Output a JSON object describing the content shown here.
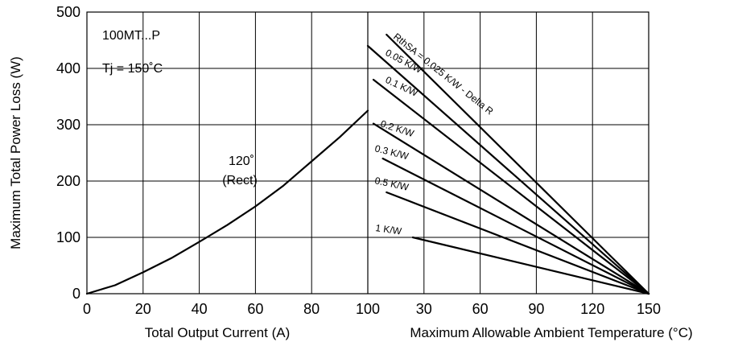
{
  "chart_data": {
    "type": "line",
    "ylabel": "Maximum Total Power Loss (W)",
    "ylim": [
      0,
      500
    ],
    "y_ticks": [
      0,
      100,
      200,
      300,
      400,
      500
    ],
    "grid": true,
    "annotations": {
      "part": "100MT...P",
      "tj": "Tj = 150˚C"
    },
    "left_panel": {
      "xlabel": "Total Output Current (A)",
      "xlim": [
        0,
        100
      ],
      "x_ticks": [
        0,
        20,
        40,
        60,
        80,
        100
      ],
      "series": [
        {
          "name": "120˚ (Rect)",
          "label_lines": [
            "120˚",
            "(Rect)"
          ],
          "x": [
            0,
            10,
            20,
            30,
            40,
            50,
            60,
            70,
            80,
            90,
            100
          ],
          "y": [
            0,
            15,
            38,
            63,
            92,
            122,
            155,
            192,
            235,
            278,
            325
          ]
        }
      ]
    },
    "right_panel": {
      "xlabel": "Maximum Allowable Ambient Temperature (°C)",
      "xlim": [
        0,
        150
      ],
      "x_ticks": [
        30,
        60,
        90,
        120,
        150
      ],
      "x_tick_labels": [
        "30",
        "60",
        "90",
        "120",
        "150"
      ],
      "series": [
        {
          "name": "RthSA = 0.025 K/W - Delta R",
          "x": [
            10,
            150
          ],
          "y": [
            460,
            0
          ]
        },
        {
          "name": "0.05 K/W",
          "x": [
            0,
            150
          ],
          "y": [
            440,
            0
          ]
        },
        {
          "name": "0.1 K/W",
          "x": [
            3,
            150
          ],
          "y": [
            380,
            0
          ]
        },
        {
          "name": "0.2 K/W",
          "x": [
            3,
            150
          ],
          "y": [
            302,
            0
          ]
        },
        {
          "name": "0.3 K/W",
          "x": [
            8,
            150
          ],
          "y": [
            240,
            0
          ]
        },
        {
          "name": "0.5 K/W",
          "x": [
            10,
            150
          ],
          "y": [
            180,
            0
          ]
        },
        {
          "name": "1 K/W",
          "x": [
            24,
            150
          ],
          "y": [
            100,
            0
          ]
        }
      ]
    }
  },
  "colors": {
    "background": "#ffffff",
    "curve": "#000000",
    "grid": "#000000",
    "text": "#000000"
  }
}
